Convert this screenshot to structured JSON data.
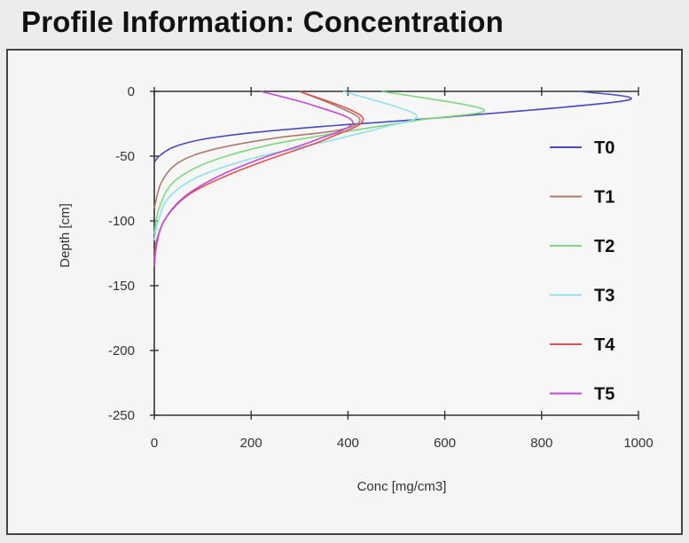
{
  "window": {
    "title": "Profile Information:  Concentration"
  },
  "chart_data": {
    "type": "line",
    "title": "",
    "xlabel": "Conc [mg/cm3]",
    "ylabel": "Depth [cm]",
    "xlim": [
      0,
      1000
    ],
    "ylim": [
      -250,
      0
    ],
    "x_ticks": [
      0,
      200,
      400,
      600,
      800,
      1000
    ],
    "y_ticks": [
      0,
      -50,
      -100,
      -150,
      -200,
      -250
    ],
    "grid": false,
    "legend_position": "right",
    "series": [
      {
        "name": "T0",
        "color": "#4a4ab8",
        "points": [
          [
            880,
            0
          ],
          [
            975,
            -7
          ],
          [
            600,
            -20
          ],
          [
            350,
            -27
          ],
          [
            200,
            -32
          ],
          [
            100,
            -37
          ],
          [
            40,
            -43
          ],
          [
            10,
            -50
          ],
          [
            0,
            -55
          ]
        ]
      },
      {
        "name": "T1",
        "color": "#b07a6a",
        "points": [
          [
            300,
            0
          ],
          [
            380,
            -12
          ],
          [
            425,
            -22
          ],
          [
            380,
            -30
          ],
          [
            250,
            -36
          ],
          [
            120,
            -45
          ],
          [
            50,
            -55
          ],
          [
            15,
            -70
          ],
          [
            0,
            -90
          ]
        ]
      },
      {
        "name": "T2",
        "color": "#7fd67f",
        "points": [
          [
            470,
            0
          ],
          [
            680,
            -14
          ],
          [
            550,
            -22
          ],
          [
            380,
            -32
          ],
          [
            230,
            -42
          ],
          [
            110,
            -55
          ],
          [
            40,
            -70
          ],
          [
            10,
            -90
          ],
          [
            0,
            -110
          ]
        ]
      },
      {
        "name": "T3",
        "color": "#8fe0e8",
        "points": [
          [
            390,
            0
          ],
          [
            540,
            -18
          ],
          [
            470,
            -28
          ],
          [
            340,
            -40
          ],
          [
            200,
            -52
          ],
          [
            90,
            -66
          ],
          [
            30,
            -82
          ],
          [
            8,
            -100
          ],
          [
            0,
            -115
          ]
        ]
      },
      {
        "name": "T4",
        "color": "#e05050",
        "points": [
          [
            300,
            0
          ],
          [
            430,
            -20
          ],
          [
            360,
            -36
          ],
          [
            240,
            -52
          ],
          [
            150,
            -65
          ],
          [
            70,
            -80
          ],
          [
            25,
            -97
          ],
          [
            5,
            -115
          ],
          [
            0,
            -130
          ]
        ]
      },
      {
        "name": "T5",
        "color": "#c04ad0",
        "points": [
          [
            220,
            0
          ],
          [
            330,
            -11
          ],
          [
            410,
            -24
          ],
          [
            330,
            -38
          ],
          [
            220,
            -52
          ],
          [
            130,
            -66
          ],
          [
            60,
            -82
          ],
          [
            20,
            -100
          ],
          [
            5,
            -118
          ],
          [
            0,
            -135
          ]
        ]
      }
    ]
  }
}
